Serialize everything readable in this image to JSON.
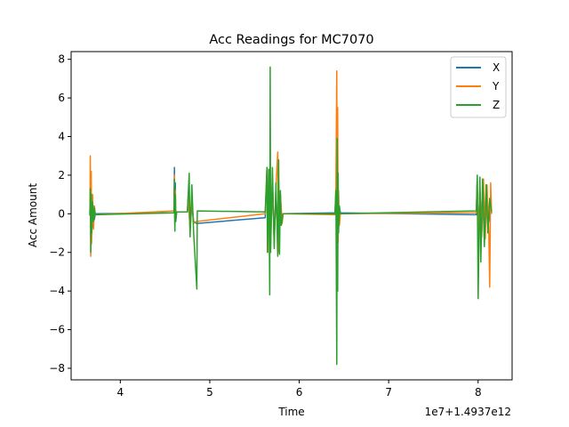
{
  "chart_data": {
    "type": "line",
    "title": "Acc Readings for MC7070",
    "xlabel": "Time",
    "ylabel": "Acc Amount",
    "x_offset_label": "1e7+1.4937e12",
    "xlim": [
      3.45,
      8.38
    ],
    "ylim": [
      -8.6,
      8.4
    ],
    "x_ticks": [
      4,
      5,
      6,
      7,
      8
    ],
    "y_ticks": [
      -8,
      -6,
      -4,
      -2,
      0,
      2,
      4,
      6,
      8
    ],
    "legend_position": "top-right",
    "grid": false,
    "series": [
      {
        "name": "X",
        "color": "#1f77b4",
        "points": [
          [
            3.66,
            0.0
          ],
          [
            3.67,
            1.1
          ],
          [
            3.675,
            -1.6
          ],
          [
            3.68,
            0.9
          ],
          [
            3.69,
            -0.7
          ],
          [
            3.7,
            0.4
          ],
          [
            3.71,
            -0.3
          ],
          [
            3.72,
            0.0
          ],
          [
            4.6,
            0.05
          ],
          [
            4.605,
            2.4
          ],
          [
            4.61,
            -0.7
          ],
          [
            4.615,
            1.6
          ],
          [
            4.62,
            -0.4
          ],
          [
            4.63,
            0.1
          ],
          [
            4.75,
            0.1
          ],
          [
            4.76,
            0.9
          ],
          [
            4.78,
            -0.8
          ],
          [
            4.8,
            0.5
          ],
          [
            4.82,
            -0.4
          ],
          [
            4.85,
            -0.5
          ],
          [
            5.62,
            -0.2
          ],
          [
            5.64,
            2.0
          ],
          [
            5.65,
            -1.6
          ],
          [
            5.66,
            1.5
          ],
          [
            5.68,
            -1.2
          ],
          [
            5.7,
            1.3
          ],
          [
            5.72,
            -1.3
          ],
          [
            5.74,
            1.0
          ],
          [
            5.76,
            -0.7
          ],
          [
            5.78,
            0.8
          ],
          [
            5.8,
            -0.4
          ],
          [
            5.82,
            0.0
          ],
          [
            6.4,
            0.05
          ],
          [
            6.41,
            0.9
          ],
          [
            6.42,
            -0.9
          ],
          [
            6.43,
            1.0
          ],
          [
            6.44,
            -0.6
          ],
          [
            6.45,
            0.3
          ],
          [
            6.46,
            0.05
          ],
          [
            7.98,
            -0.05
          ],
          [
            7.99,
            1.9
          ],
          [
            8.0,
            -1.2
          ],
          [
            8.02,
            1.2
          ],
          [
            8.04,
            -0.9
          ],
          [
            8.06,
            0.9
          ],
          [
            8.08,
            -0.6
          ],
          [
            8.1,
            0.7
          ],
          [
            8.12,
            -0.4
          ],
          [
            8.14,
            0.3
          ],
          [
            8.15,
            0.0
          ]
        ]
      },
      {
        "name": "Y",
        "color": "#ff7f0e",
        "points": [
          [
            3.66,
            -0.1
          ],
          [
            3.665,
            3.0
          ],
          [
            3.67,
            -2.2
          ],
          [
            3.675,
            2.2
          ],
          [
            3.68,
            -1.5
          ],
          [
            3.69,
            1.0
          ],
          [
            3.7,
            -0.8
          ],
          [
            3.71,
            0.4
          ],
          [
            3.72,
            -0.05
          ],
          [
            4.6,
            0.15
          ],
          [
            4.605,
            2.0
          ],
          [
            4.61,
            -0.5
          ],
          [
            4.615,
            1.2
          ],
          [
            4.62,
            -0.3
          ],
          [
            4.63,
            0.1
          ],
          [
            4.75,
            0.1
          ],
          [
            4.76,
            1.0
          ],
          [
            4.78,
            -0.9
          ],
          [
            4.8,
            0.7
          ],
          [
            4.82,
            -0.5
          ],
          [
            4.85,
            -0.4
          ],
          [
            5.62,
            0.0
          ],
          [
            5.64,
            2.4
          ],
          [
            5.65,
            -2.0
          ],
          [
            5.66,
            2.0
          ],
          [
            5.68,
            -1.6
          ],
          [
            5.7,
            1.8
          ],
          [
            5.72,
            -1.5
          ],
          [
            5.74,
            1.4
          ],
          [
            5.76,
            3.2
          ],
          [
            5.77,
            -2.0
          ],
          [
            5.79,
            1.0
          ],
          [
            5.81,
            -0.5
          ],
          [
            5.82,
            0.0
          ],
          [
            6.4,
            -0.05
          ],
          [
            6.41,
            1.4
          ],
          [
            6.42,
            7.4
          ],
          [
            6.425,
            -2.4
          ],
          [
            6.43,
            5.5
          ],
          [
            6.435,
            -1.5
          ],
          [
            6.44,
            1.2
          ],
          [
            6.45,
            -0.6
          ],
          [
            6.46,
            0.0
          ],
          [
            7.98,
            0.05
          ],
          [
            7.99,
            1.6
          ],
          [
            8.0,
            -1.4
          ],
          [
            8.02,
            1.4
          ],
          [
            8.04,
            -1.2
          ],
          [
            8.06,
            1.8
          ],
          [
            8.08,
            -1.3
          ],
          [
            8.1,
            1.5
          ],
          [
            8.12,
            -1.0
          ],
          [
            8.13,
            -3.8
          ],
          [
            8.14,
            1.6
          ],
          [
            8.15,
            0.0
          ]
        ]
      },
      {
        "name": "Z",
        "color": "#2ca02c",
        "points": [
          [
            3.66,
            -0.1
          ],
          [
            3.665,
            1.3
          ],
          [
            3.67,
            -2.0
          ],
          [
            3.675,
            1.0
          ],
          [
            3.68,
            -1.0
          ],
          [
            3.69,
            0.6
          ],
          [
            3.7,
            -0.4
          ],
          [
            3.71,
            0.3
          ],
          [
            3.72,
            -0.05
          ],
          [
            4.6,
            0.05
          ],
          [
            4.605,
            1.8
          ],
          [
            4.61,
            -0.9
          ],
          [
            4.615,
            1.0
          ],
          [
            4.62,
            -0.3
          ],
          [
            4.63,
            0.1
          ],
          [
            4.75,
            0.1
          ],
          [
            4.77,
            2.1
          ],
          [
            4.78,
            -1.2
          ],
          [
            4.8,
            1.5
          ],
          [
            4.82,
            -1.0
          ],
          [
            4.855,
            -3.9
          ],
          [
            4.86,
            0.15
          ],
          [
            5.62,
            0.1
          ],
          [
            5.64,
            2.4
          ],
          [
            5.645,
            -2.0
          ],
          [
            5.66,
            2.3
          ],
          [
            5.67,
            -4.2
          ],
          [
            5.675,
            7.6
          ],
          [
            5.68,
            -2.0
          ],
          [
            5.7,
            2.4
          ],
          [
            5.72,
            -1.8
          ],
          [
            5.74,
            1.6
          ],
          [
            5.76,
            -2.2
          ],
          [
            5.77,
            2.8
          ],
          [
            5.78,
            -2.1
          ],
          [
            5.79,
            1.2
          ],
          [
            5.8,
            -0.6
          ],
          [
            5.82,
            0.0
          ],
          [
            6.4,
            0.0
          ],
          [
            6.41,
            1.2
          ],
          [
            6.42,
            -7.8
          ],
          [
            6.425,
            3.9
          ],
          [
            6.43,
            -4.0
          ],
          [
            6.435,
            2.1
          ],
          [
            6.44,
            -1.0
          ],
          [
            6.45,
            0.4
          ],
          [
            6.46,
            0.0
          ],
          [
            7.98,
            0.15
          ],
          [
            7.99,
            2.0
          ],
          [
            8.0,
            -4.4
          ],
          [
            8.02,
            1.9
          ],
          [
            8.03,
            -2.5
          ],
          [
            8.05,
            1.8
          ],
          [
            8.07,
            -1.7
          ],
          [
            8.09,
            1.5
          ],
          [
            8.11,
            -1.0
          ],
          [
            8.13,
            0.8
          ],
          [
            8.15,
            0.1
          ]
        ]
      }
    ]
  }
}
